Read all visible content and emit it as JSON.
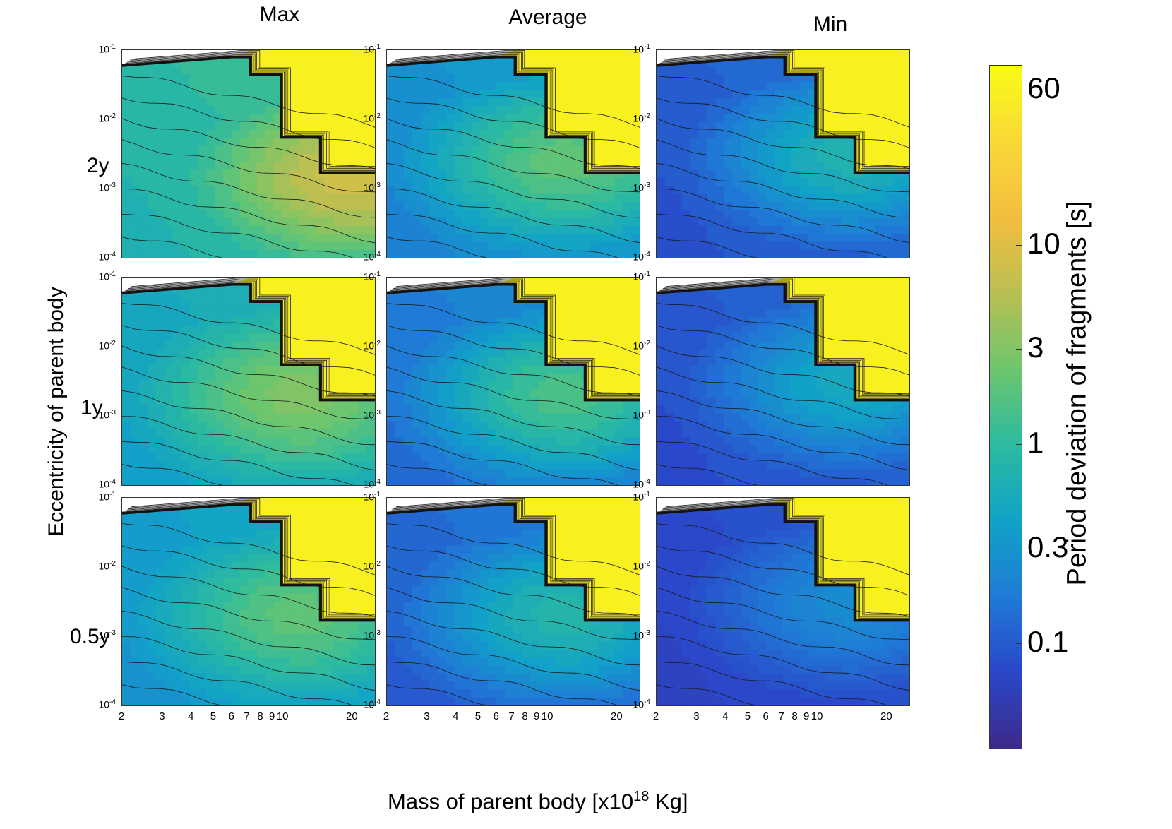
{
  "chart_data": {
    "type": "contour-grid",
    "column_titles": [
      "Max",
      "Average",
      "Min"
    ],
    "row_labels": [
      "2y",
      "1y",
      "0.5y"
    ],
    "xlabel_prefix": "Mass of parent body [x10",
    "xlabel_exp": "18",
    "xlabel_suffix": " Kg]",
    "ylabel": "Eccentricity of parent body",
    "x_scale": "log",
    "xlim": [
      2,
      25
    ],
    "x_ticks": [
      "2",
      "3",
      "4",
      "5",
      "6",
      "7",
      "8",
      "9",
      "10",
      "20"
    ],
    "x_tick_values": [
      2,
      3,
      4,
      5,
      6,
      7,
      8,
      9,
      10,
      20
    ],
    "y_scale": "log",
    "ylim": [
      0.0001,
      0.1
    ],
    "y_ticks": [
      {
        "base": "10",
        "exp": "-1",
        "value": 0.1
      },
      {
        "base": "10",
        "exp": "-2",
        "value": 0.01
      },
      {
        "base": "10",
        "exp": "-3",
        "value": 0.001
      },
      {
        "base": "10",
        "exp": "-4",
        "value": 0.0001
      }
    ],
    "colorbar": {
      "label": "Period deviation of fragments [s]",
      "scale": "log",
      "range": [
        0.03,
        80
      ],
      "ticks": [
        "60",
        "10",
        "3",
        "1",
        "0.3",
        "0.1"
      ],
      "tick_values": [
        60,
        10,
        3,
        1,
        0.3,
        0.1
      ],
      "colormap": [
        "#3e2a8a",
        "#2a47c9",
        "#1f7ad6",
        "#11a3c7",
        "#2cbaa0",
        "#6dc66e",
        "#b9bf52",
        "#f3be3f",
        "#f9d838",
        "#f9fb15"
      ]
    },
    "saturated_value_s": 60,
    "saturation_boundary": {
      "mass": [
        2,
        6,
        7.2,
        7.2,
        9.8,
        9.8,
        14.5,
        14.5,
        25
      ],
      "eccentricity": [
        0.06,
        0.08,
        0.08,
        0.045,
        0.045,
        0.0055,
        0.0055,
        0.0017,
        0.0017
      ]
    },
    "panels": [
      {
        "row": "2y",
        "column": "Max",
        "peak_s": 8,
        "low_s": 0.3,
        "peak_mass": 20,
        "peak_eccentricity": 0.0015
      },
      {
        "row": "2y",
        "column": "Average",
        "peak_s": 2,
        "low_s": 0.1,
        "peak_mass": 12,
        "peak_eccentricity": 0.0025
      },
      {
        "row": "2y",
        "column": "Min",
        "peak_s": 0.7,
        "low_s": 0.04,
        "peak_mass": 14,
        "peak_eccentricity": 0.003
      },
      {
        "row": "1y",
        "column": "Max",
        "peak_s": 3,
        "low_s": 0.2,
        "peak_mass": 12,
        "peak_eccentricity": 0.002
      },
      {
        "row": "1y",
        "column": "Average",
        "peak_s": 1.5,
        "low_s": 0.06,
        "peak_mass": 12,
        "peak_eccentricity": 0.002
      },
      {
        "row": "1y",
        "column": "Min",
        "peak_s": 0.5,
        "low_s": 0.04,
        "peak_mass": 14,
        "peak_eccentricity": 0.003
      },
      {
        "row": "0.5y",
        "column": "Max",
        "peak_s": 2,
        "low_s": 0.15,
        "peak_mass": 12,
        "peak_eccentricity": 0.002
      },
      {
        "row": "0.5y",
        "column": "Average",
        "peak_s": 0.8,
        "low_s": 0.05,
        "peak_mass": 12,
        "peak_eccentricity": 0.002
      },
      {
        "row": "0.5y",
        "column": "Min",
        "peak_s": 0.25,
        "low_s": 0.04,
        "peak_mass": 14,
        "peak_eccentricity": 0.003
      }
    ]
  }
}
